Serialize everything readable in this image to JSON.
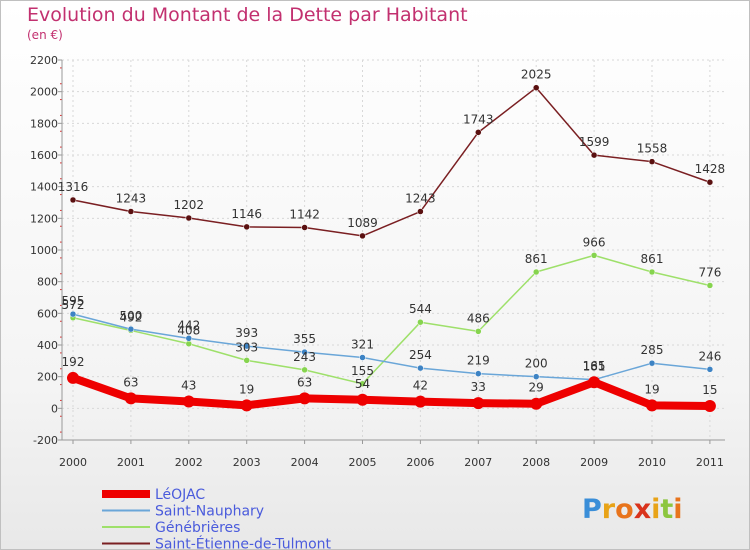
{
  "chart_data": {
    "type": "line",
    "title": "Evolution du Montant de la Dette par Habitant",
    "subtitle": "(en €)",
    "xlabel": "",
    "ylabel": "",
    "x": [
      "2000",
      "2001",
      "2002",
      "2003",
      "2004",
      "2005",
      "2006",
      "2007",
      "2008",
      "2009",
      "2010",
      "2011"
    ],
    "ylim": [
      -200,
      2200
    ],
    "yticks": [
      -200,
      0,
      200,
      400,
      600,
      800,
      1000,
      1200,
      1400,
      1600,
      1800,
      2000,
      2200
    ],
    "grid": true,
    "legend": "bottom-left",
    "series": [
      {
        "name": "Saint-Étienne-de-Tulmont",
        "color": "#7a1f22",
        "marker": "#5a1010",
        "width": 1.5,
        "values": [
          1316,
          1243,
          1202,
          1146,
          1142,
          1089,
          1243,
          1743,
          2025,
          1599,
          1558,
          1428
        ]
      },
      {
        "name": "Génébrières",
        "color": "#9ee06a",
        "marker": "#86d44e",
        "width": 1.5,
        "values": [
          572,
          492,
          408,
          303,
          243,
          155,
          544,
          486,
          861,
          966,
          861,
          776
        ]
      },
      {
        "name": "Saint-Nauphary",
        "color": "#6aa6d8",
        "marker": "#3d83c4",
        "width": 1.5,
        "values": [
          595,
          500,
          442,
          393,
          355,
          321,
          254,
          219,
          200,
          181,
          285,
          246
        ]
      },
      {
        "name": "LéOJAC",
        "color": "#ee0000",
        "marker": "#ee0000",
        "width": 8,
        "values": [
          192,
          63,
          43,
          19,
          63,
          54,
          42,
          33,
          29,
          165,
          19,
          15
        ]
      }
    ]
  },
  "legend": {
    "items": [
      "LéOJAC",
      "Saint-Nauphary",
      "Génébrières",
      "Saint-Étienne-de-Tulmont"
    ]
  },
  "logo": {
    "letters": [
      "P",
      "r",
      "o",
      "x",
      "i",
      "t",
      "i"
    ],
    "colors": [
      "#3a8ed8",
      "#e8a317",
      "#e8741c",
      "#d9331c",
      "#e8a317",
      "#8cc63f",
      "#e8741c"
    ]
  }
}
